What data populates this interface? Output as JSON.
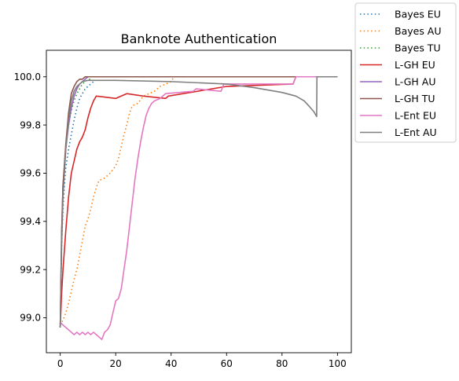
{
  "chart_data": {
    "type": "line",
    "title": "Banknote Authentication",
    "xlabel": "",
    "ylabel": "",
    "xlim": [
      -5,
      105
    ],
    "ylim": [
      98.855,
      100.11
    ],
    "x_ticks": [
      0,
      20,
      40,
      60,
      80,
      100
    ],
    "x_tick_labels": [
      "0",
      "20",
      "40",
      "60",
      "80",
      "100"
    ],
    "y_ticks": [
      99.0,
      99.2,
      99.4,
      99.6,
      99.8,
      100.0
    ],
    "y_tick_labels": [
      "99.0",
      "99.2",
      "99.4",
      "99.6",
      "99.8",
      "100.0"
    ],
    "grid": false,
    "legend_position": "outside-top-right",
    "series": [
      {
        "name": "Bayes EU",
        "color": "#1f77b4",
        "dash": "dotted",
        "points": [
          [
            0,
            98.96
          ],
          [
            0.5,
            99.3
          ],
          [
            1,
            99.45
          ],
          [
            1.5,
            99.55
          ],
          [
            2,
            99.62
          ],
          [
            2.5,
            99.66
          ],
          [
            3,
            99.7
          ],
          [
            4,
            99.76
          ],
          [
            5,
            99.82
          ],
          [
            6,
            99.87
          ],
          [
            7,
            99.91
          ],
          [
            8,
            99.93
          ],
          [
            9,
            99.95
          ],
          [
            10,
            99.96
          ],
          [
            11,
            99.97
          ],
          [
            12,
            99.98
          ]
        ]
      },
      {
        "name": "Bayes AU",
        "color": "#ff7f0e",
        "dash": "dotted",
        "points": [
          [
            0,
            98.97
          ],
          [
            1,
            98.99
          ],
          [
            2,
            99.02
          ],
          [
            3,
            99.06
          ],
          [
            4,
            99.11
          ],
          [
            5,
            99.16
          ],
          [
            6,
            99.2
          ],
          [
            7,
            99.26
          ],
          [
            8,
            99.32
          ],
          [
            9,
            99.38
          ],
          [
            10,
            99.41
          ],
          [
            11,
            99.45
          ],
          [
            12,
            99.5
          ],
          [
            13,
            99.54
          ],
          [
            14,
            99.57
          ],
          [
            16,
            99.58
          ],
          [
            18,
            99.6
          ],
          [
            20,
            99.63
          ],
          [
            21,
            99.66
          ],
          [
            22,
            99.71
          ],
          [
            23,
            99.76
          ],
          [
            24,
            99.8
          ],
          [
            25,
            99.85
          ],
          [
            26,
            99.88
          ],
          [
            28,
            99.89
          ],
          [
            30,
            99.92
          ],
          [
            32,
            99.93
          ],
          [
            34,
            99.94
          ],
          [
            36,
            99.96
          ],
          [
            38,
            99.97
          ],
          [
            40,
            99.98
          ],
          [
            41,
            100.0
          ],
          [
            100,
            100.0
          ]
        ]
      },
      {
        "name": "Bayes TU",
        "color": "#2ca02c",
        "dash": "dotted",
        "points": [
          [
            0,
            98.96
          ],
          [
            0.5,
            99.3
          ],
          [
            1,
            99.5
          ],
          [
            1.5,
            99.62
          ],
          [
            2,
            99.7
          ],
          [
            3,
            99.8
          ],
          [
            4,
            99.86
          ],
          [
            5,
            99.9
          ],
          [
            6,
            99.93
          ],
          [
            7,
            99.95
          ],
          [
            8,
            99.97
          ],
          [
            9,
            99.98
          ],
          [
            10,
            99.99
          ],
          [
            11,
            99.99
          ]
        ]
      },
      {
        "name": "L-GH EU",
        "color": "#d62728",
        "dash": "solid",
        "points": [
          [
            0,
            98.96
          ],
          [
            0.5,
            99.1
          ],
          [
            1,
            99.2
          ],
          [
            2,
            99.36
          ],
          [
            3,
            99.5
          ],
          [
            4,
            99.6
          ],
          [
            5,
            99.65
          ],
          [
            6,
            99.7
          ],
          [
            7,
            99.73
          ],
          [
            8,
            99.75
          ],
          [
            9,
            99.78
          ],
          [
            10,
            99.83
          ],
          [
            11,
            99.87
          ],
          [
            12,
            99.9
          ],
          [
            13,
            99.92
          ],
          [
            20,
            99.91
          ],
          [
            22,
            99.92
          ],
          [
            24,
            99.93
          ],
          [
            30,
            99.92
          ],
          [
            38,
            99.91
          ],
          [
            39,
            99.92
          ],
          [
            60,
            99.96
          ],
          [
            84,
            99.97
          ],
          [
            85,
            100.0
          ],
          [
            100,
            100.0
          ]
        ]
      },
      {
        "name": "L-GH AU",
        "color": "#9467bd",
        "dash": "solid",
        "points": [
          [
            0,
            98.96
          ],
          [
            0.5,
            99.35
          ],
          [
            1,
            99.55
          ],
          [
            2,
            99.7
          ],
          [
            3,
            99.8
          ],
          [
            4,
            99.87
          ],
          [
            5,
            99.92
          ],
          [
            6,
            99.95
          ],
          [
            7,
            99.97
          ],
          [
            8,
            99.98
          ],
          [
            9,
            99.99
          ],
          [
            10,
            100.0
          ],
          [
            100,
            100.0
          ]
        ]
      },
      {
        "name": "L-GH TU",
        "color": "#8c564b",
        "dash": "solid",
        "points": [
          [
            0,
            98.96
          ],
          [
            0.5,
            99.35
          ],
          [
            1,
            99.55
          ],
          [
            2,
            99.72
          ],
          [
            3,
            99.85
          ],
          [
            4,
            99.93
          ],
          [
            5,
            99.96
          ],
          [
            6,
            99.98
          ],
          [
            7,
            99.99
          ],
          [
            8,
            99.99
          ],
          [
            9,
            100.0
          ],
          [
            100,
            100.0
          ]
        ]
      },
      {
        "name": "L-Ent EU",
        "color": "#e377c2",
        "dash": "solid",
        "points": [
          [
            0,
            98.98
          ],
          [
            2,
            98.96
          ],
          [
            4,
            98.94
          ],
          [
            5,
            98.93
          ],
          [
            6,
            98.94
          ],
          [
            7,
            98.93
          ],
          [
            8,
            98.94
          ],
          [
            9,
            98.93
          ],
          [
            10,
            98.94
          ],
          [
            11,
            98.93
          ],
          [
            12,
            98.94
          ],
          [
            13,
            98.93
          ],
          [
            14,
            98.92
          ],
          [
            15,
            98.91
          ],
          [
            16,
            98.94
          ],
          [
            17,
            98.95
          ],
          [
            18,
            98.97
          ],
          [
            19,
            99.02
          ],
          [
            20,
            99.07
          ],
          [
            21,
            99.08
          ],
          [
            22,
            99.12
          ],
          [
            23,
            99.2
          ],
          [
            24,
            99.28
          ],
          [
            25,
            99.38
          ],
          [
            26,
            99.48
          ],
          [
            27,
            99.58
          ],
          [
            28,
            99.66
          ],
          [
            29,
            99.73
          ],
          [
            30,
            99.79
          ],
          [
            31,
            99.84
          ],
          [
            32,
            99.87
          ],
          [
            33,
            99.89
          ],
          [
            34,
            99.9
          ],
          [
            36,
            99.91
          ],
          [
            38,
            99.93
          ],
          [
            48,
            99.94
          ],
          [
            49,
            99.95
          ],
          [
            58,
            99.94
          ],
          [
            59,
            99.97
          ],
          [
            84,
            99.97
          ],
          [
            85,
            100.0
          ],
          [
            100,
            100.0
          ]
        ]
      },
      {
        "name": "L-Ent AU",
        "color": "#7f7f7f",
        "dash": "solid",
        "points": [
          [
            0,
            98.96
          ],
          [
            0.5,
            99.3
          ],
          [
            1,
            99.5
          ],
          [
            2,
            99.7
          ],
          [
            3,
            99.82
          ],
          [
            4,
            99.9
          ],
          [
            5,
            99.94
          ],
          [
            6,
            99.96
          ],
          [
            7,
            99.97
          ],
          [
            8,
            99.98
          ],
          [
            10,
            99.985
          ],
          [
            20,
            99.985
          ],
          [
            40,
            99.98
          ],
          [
            60,
            99.97
          ],
          [
            70,
            99.955
          ],
          [
            80,
            99.935
          ],
          [
            85,
            99.92
          ],
          [
            88,
            99.9
          ],
          [
            90,
            99.875
          ],
          [
            91.5,
            99.855
          ],
          [
            92.5,
            99.835
          ],
          [
            92.6,
            100.0
          ],
          [
            100,
            100.0
          ]
        ]
      }
    ]
  }
}
